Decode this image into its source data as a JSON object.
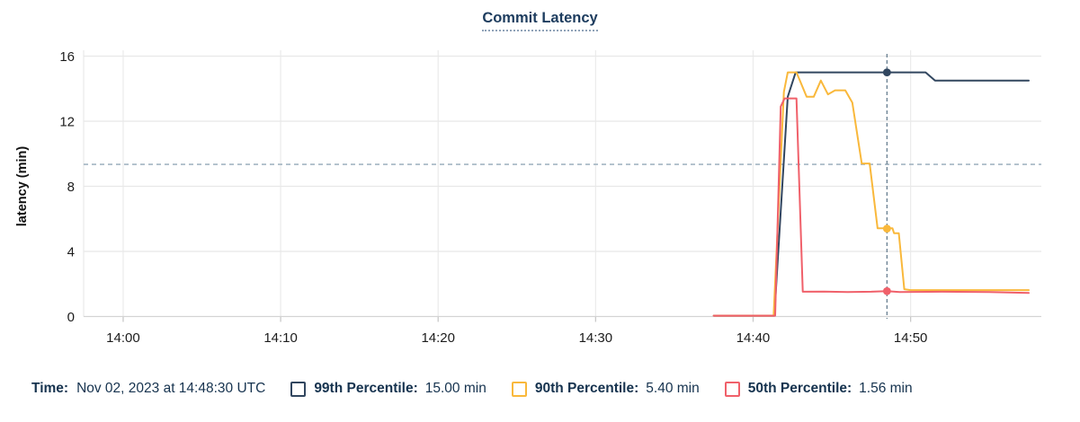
{
  "title": "Commit Latency",
  "legend": {
    "time_label": "Time:",
    "time_value": "Nov 02, 2023 at 14:48:30 UTC",
    "items": [
      {
        "label": "99th Percentile:",
        "value": "15.00 min",
        "color": "#31465f"
      },
      {
        "label": "90th Percentile:",
        "value": "5.40 min",
        "color": "#f9b83b"
      },
      {
        "label": "50th Percentile:",
        "value": "1.56 min",
        "color": "#f0606a"
      }
    ]
  },
  "colors": {
    "grid": "#e8e8e8",
    "grid_vertical": "#ececec",
    "axis_line": "#d4d4d4",
    "tick_mark": "#c9c9c9",
    "tick_text": "#1c1c1c",
    "threshold_line": "#a3b5c2",
    "crosshair_line": "#6e8495",
    "title_text": "#1d3c5e",
    "legend_text": "#16334f"
  },
  "chart_data": {
    "type": "line",
    "title": "Commit Latency",
    "xlabel": "",
    "ylabel": "latency (min)",
    "x_axis_unit": "time of day (HH:MM), minutes after 14:00",
    "x_ticks": [
      {
        "label": "14:00",
        "m": 0
      },
      {
        "label": "14:10",
        "m": 10
      },
      {
        "label": "14:20",
        "m": 20
      },
      {
        "label": "14:30",
        "m": 30
      },
      {
        "label": "14:40",
        "m": 40
      },
      {
        "label": "14:50",
        "m": 50
      }
    ],
    "y_ticks": [
      0,
      4,
      8,
      12,
      16
    ],
    "ylim": [
      0,
      16
    ],
    "x_domain_minutes": [
      -2.51,
      58.3
    ],
    "grid": true,
    "legend_position": "bottom",
    "threshold": {
      "value": 9.35,
      "style": "dashed"
    },
    "crosshair": {
      "time_minutes": 48.5,
      "time_label": "14:48:30",
      "marker_values": [
        15.0,
        5.4,
        1.56
      ]
    },
    "series": [
      {
        "name": "99th Percentile",
        "color": "#31465f",
        "points": [
          [
            37.5,
            0.05
          ],
          [
            41.35,
            0.05
          ],
          [
            42.2,
            13.5
          ],
          [
            42.7,
            15.0
          ],
          [
            50.95,
            15.0
          ],
          [
            51.55,
            14.5
          ],
          [
            57.5,
            14.5
          ]
        ]
      },
      {
        "name": "90th Percentile",
        "color": "#f9b83b",
        "points": [
          [
            37.5,
            0.05
          ],
          [
            41.3,
            0.05
          ],
          [
            41.95,
            13.8
          ],
          [
            42.2,
            15.0
          ],
          [
            42.75,
            15.0
          ],
          [
            43.4,
            13.5
          ],
          [
            43.85,
            13.5
          ],
          [
            44.3,
            14.5
          ],
          [
            44.75,
            13.65
          ],
          [
            45.2,
            13.9
          ],
          [
            45.85,
            13.9
          ],
          [
            46.3,
            13.15
          ],
          [
            46.9,
            9.4
          ],
          [
            47.4,
            9.4
          ],
          [
            47.9,
            5.42
          ],
          [
            48.85,
            5.42
          ],
          [
            48.95,
            5.12
          ],
          [
            49.25,
            5.12
          ],
          [
            49.6,
            1.68
          ],
          [
            50.0,
            1.62
          ],
          [
            57.5,
            1.62
          ]
        ]
      },
      {
        "name": "50th Percentile",
        "color": "#f0606a",
        "points": [
          [
            37.5,
            0.05
          ],
          [
            41.4,
            0.05
          ],
          [
            41.75,
            12.9
          ],
          [
            42.0,
            13.4
          ],
          [
            42.75,
            13.4
          ],
          [
            43.15,
            1.52
          ],
          [
            44.5,
            1.53
          ],
          [
            46.0,
            1.5
          ],
          [
            47.5,
            1.52
          ],
          [
            48.5,
            1.56
          ],
          [
            49.3,
            1.5
          ],
          [
            52.0,
            1.52
          ],
          [
            55.0,
            1.5
          ],
          [
            57.5,
            1.45
          ]
        ]
      }
    ]
  }
}
